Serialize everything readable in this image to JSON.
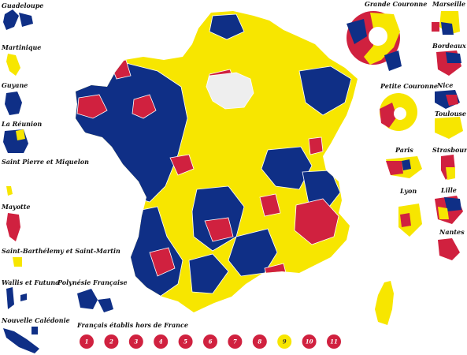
{
  "colors": {
    "red": "#d0213f",
    "blue": "#0f2f86",
    "yellow": "#f7e600",
    "gray": "#eeeeee",
    "border": "#ffffff"
  },
  "overseas": {
    "guadeloupe": "Guadeloupe",
    "martinique": "Martinique",
    "guyane": "Guyane",
    "reunion": "La Réunion",
    "spm": "Saint Pierre et Miquelon",
    "mayotte": "Mayotte",
    "stbarth": "Saint-Barthélemy et Saint-Martin",
    "wallis": "Wallis et Futuna",
    "polynesie": "Polynésie Française",
    "caledonie": "Nouvelle Calédonie"
  },
  "cities": {
    "grande_couronne": "Grande Couronne",
    "marseille": "Marseille",
    "bordeaux": "Bordeaux",
    "petite_couronne": "Petite Couronne",
    "nice": "Nice",
    "toulouse": "Toulouse",
    "paris": "Paris",
    "strasbourg": "Strasbourg",
    "lyon": "Lyon",
    "lille": "Lille",
    "nantes": "Nantes"
  },
  "abroad": {
    "title": "Français établis hors de France",
    "circles": [
      {
        "label": "1",
        "color": "red"
      },
      {
        "label": "2",
        "color": "red"
      },
      {
        "label": "3",
        "color": "red"
      },
      {
        "label": "4",
        "color": "red"
      },
      {
        "label": "5",
        "color": "red"
      },
      {
        "label": "6",
        "color": "red"
      },
      {
        "label": "7",
        "color": "red"
      },
      {
        "label": "8",
        "color": "red"
      },
      {
        "label": "9",
        "color": "yellow"
      },
      {
        "label": "10",
        "color": "red"
      },
      {
        "label": "11",
        "color": "red"
      }
    ]
  }
}
